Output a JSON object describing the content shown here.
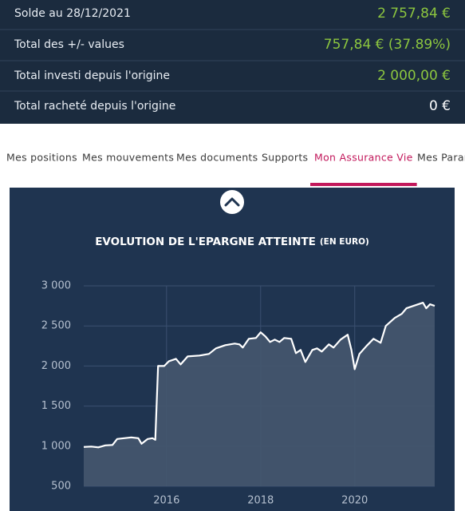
{
  "summary": [
    {
      "label": "Solde au 28/12/2021",
      "value": "2 757,84 €"
    },
    {
      "label": "Total des +/- values",
      "value": "757,84 € (37.89%)"
    },
    {
      "label": "Total investi depuis l'origine",
      "value": "2 000,00 €"
    },
    {
      "label": "Total racheté depuis l'origine",
      "value": "0 €"
    }
  ],
  "tabs": [
    "Mes positions",
    "Mes mouvements",
    "Mes documents",
    "Supports",
    "Mon Assurance Vie",
    "Mes Param"
  ],
  "active_tab": 4,
  "chart_data": {
    "type": "area",
    "title": "EVOLUTION DE L'EPARGNE ATTEINTE",
    "unit": "(EN EURO)",
    "color": "#ffffff",
    "fill": "#45566e",
    "x": [
      2014.24,
      2014.4,
      2014.55,
      2014.7,
      2014.85,
      2014.95,
      2015.1,
      2015.25,
      2015.4,
      2015.47,
      2015.6,
      2015.7,
      2015.76,
      2015.82,
      2015.95,
      2016.05,
      2016.2,
      2016.3,
      2016.45,
      2016.7,
      2016.9,
      2017.05,
      2017.25,
      2017.45,
      2017.55,
      2017.62,
      2017.75,
      2017.9,
      2018.0,
      2018.1,
      2018.2,
      2018.3,
      2018.4,
      2018.5,
      2018.65,
      2018.75,
      2018.85,
      2018.95,
      2019.1,
      2019.2,
      2019.3,
      2019.45,
      2019.55,
      2019.7,
      2019.85,
      2019.93,
      2020.0,
      2020.1,
      2020.25,
      2020.4,
      2020.55,
      2020.66,
      2020.85,
      2021.0,
      2021.1,
      2021.3,
      2021.45,
      2021.52,
      2021.6,
      2021.7
    ],
    "values": [
      990,
      995,
      985,
      1010,
      1015,
      1090,
      1100,
      1110,
      1100,
      1030,
      1090,
      1100,
      1080,
      2000,
      2000,
      2060,
      2090,
      2020,
      2120,
      2130,
      2150,
      2220,
      2260,
      2280,
      2270,
      2230,
      2340,
      2350,
      2420,
      2370,
      2300,
      2330,
      2300,
      2350,
      2340,
      2160,
      2200,
      2050,
      2200,
      2220,
      2180,
      2270,
      2230,
      2330,
      2390,
      2200,
      1960,
      2150,
      2250,
      2340,
      2290,
      2500,
      2600,
      2650,
      2720,
      2760,
      2790,
      2720,
      2770,
      2750
    ],
    "xlim": [
      2014.24,
      2021.7
    ],
    "xticks": [
      2016,
      2018,
      2020
    ],
    "ylim": [
      500,
      3000
    ],
    "yticks": [
      500,
      {
        "value": 1000,
        "label": "1 000"
      },
      {
        "value": 1500,
        "label": "1 500"
      },
      {
        "value": 2000,
        "label": "2 000"
      },
      {
        "value": 2500,
        "label": "2 500"
      },
      {
        "value": 3000,
        "label": "3 000"
      }
    ],
    "grid": true
  }
}
